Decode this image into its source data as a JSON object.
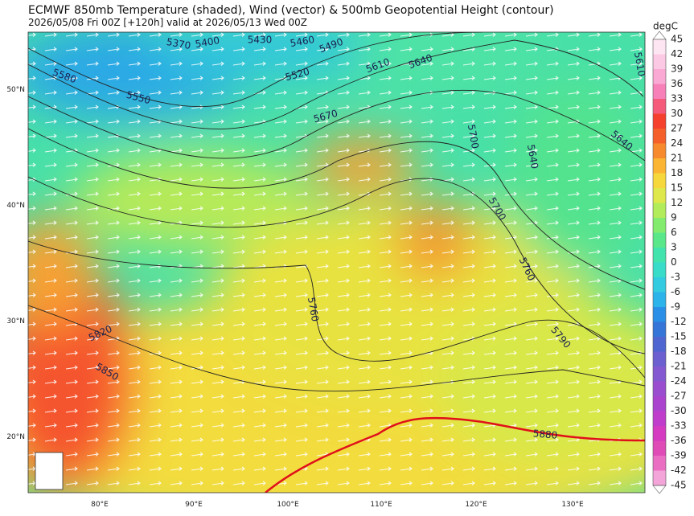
{
  "header": {
    "title": "ECMWF 850mb Temperature (shaded), Wind (vector) & 500mb Geopotential Height (contour)",
    "subtitle": "2026/05/08 Fri 00Z [+120h] valid at 2026/05/13 Wed 00Z"
  },
  "map": {
    "lat_labels": [
      "50°N",
      "40°N",
      "30°N",
      "20°N"
    ],
    "lon_labels": [
      "80°E",
      "90°E",
      "100°E",
      "110°E",
      "120°E",
      "130°E"
    ],
    "contour_labels": [
      "5370",
      "5400",
      "5430",
      "5460",
      "5490",
      "5520",
      "5550",
      "5580",
      "5610",
      "5640",
      "5670",
      "5700",
      "5640",
      "5640",
      "5610",
      "5700",
      "5760",
      "5790",
      "5760",
      "5820",
      "5850",
      "5880"
    ]
  },
  "colorbar": {
    "unit": "degC",
    "ticks": [
      45,
      42,
      39,
      36,
      33,
      30,
      27,
      24,
      21,
      18,
      15,
      12,
      9,
      6,
      3,
      0,
      -3,
      -6,
      -9,
      -12,
      -15,
      -18,
      -21,
      -24,
      -27,
      -30,
      -33,
      -36,
      -39,
      -42,
      -45
    ],
    "colors": [
      "#fde6f2",
      "#fbc9e4",
      "#f9a9d3",
      "#f780b8",
      "#f65a7a",
      "#f5402e",
      "#f5602a",
      "#f88a2e",
      "#fbb532",
      "#f7d83c",
      "#dfe84a",
      "#b3ec5a",
      "#83ec6e",
      "#5ae78a",
      "#42e3ad",
      "#38dcc9",
      "#33cbe0",
      "#2cb3ea",
      "#2a8fe6",
      "#3675d8",
      "#4f66d0",
      "#6c5fd0",
      "#8458d0",
      "#9a4ecf",
      "#aa44cf",
      "#c03dcc",
      "#d43bc0",
      "#e04cb6",
      "#ea6fc3",
      "#f3a5da"
    ]
  }
}
